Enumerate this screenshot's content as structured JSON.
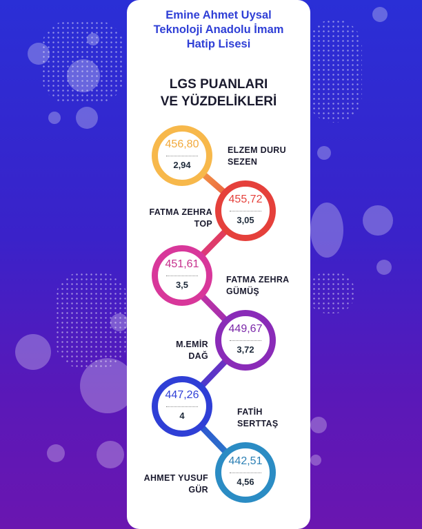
{
  "school_name": [
    "Emine Ahmet Uysal",
    "Teknoloji Anadolu İmam",
    "Hatip Lisesi"
  ],
  "heading": [
    "LGS PUANLARI",
    "VE YÜZDELİKLERİ"
  ],
  "students": [
    {
      "name_line1": "ELZEM DURU",
      "name_line2": "SEZEN",
      "score": "456,80",
      "percentile": "2,94",
      "color": "#f7b84b"
    },
    {
      "name_line1": "FATMA ZEHRA",
      "name_line2": "TOP",
      "score": "455,72",
      "percentile": "3,05",
      "color": "#e5403b"
    },
    {
      "name_line1": "FATMA ZEHRA",
      "name_line2": "GÜMÜŞ",
      "score": "451,61",
      "percentile": "3,5",
      "color": "#d8379a"
    },
    {
      "name_line1": "M.EMİR",
      "name_line2": "DAĞ",
      "score": "449,67",
      "percentile": "3,72",
      "color": "#8a2bb8"
    },
    {
      "name_line1": "FATİH",
      "name_line2": "SERTTAŞ",
      "score": "447,26",
      "percentile": "4",
      "color": "#2f3fd6"
    },
    {
      "name_line1": "AHMET YUSUF",
      "name_line2": "GÜR",
      "score": "442,51",
      "percentile": "4,56",
      "color": "#2b8cc4"
    }
  ]
}
